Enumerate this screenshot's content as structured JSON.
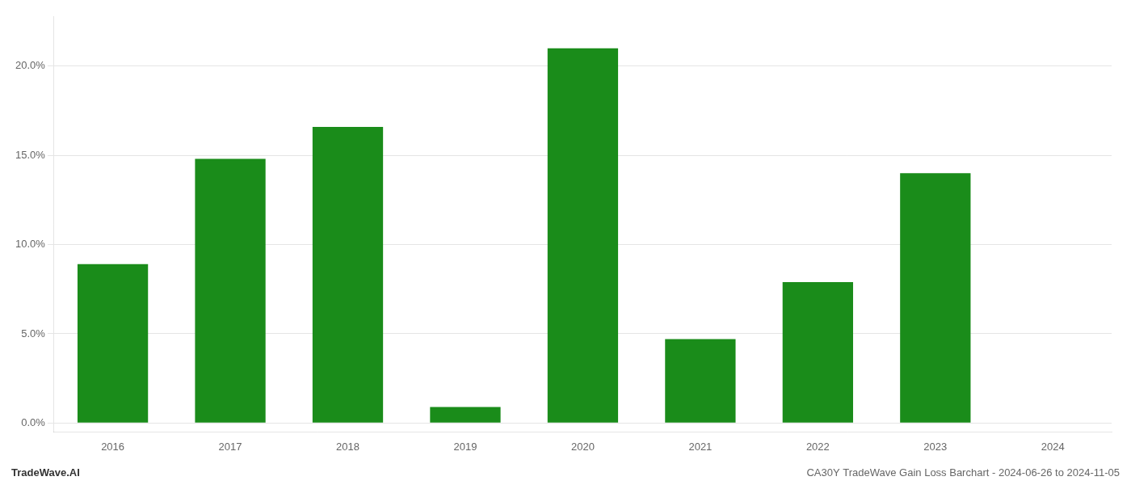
{
  "chart_data": {
    "type": "bar",
    "categories": [
      "2016",
      "2017",
      "2018",
      "2019",
      "2020",
      "2021",
      "2022",
      "2023",
      "2024"
    ],
    "values": [
      0.089,
      0.148,
      0.166,
      0.009,
      0.21,
      0.047,
      0.079,
      0.14,
      0.0
    ],
    "color": "#1a8c1a",
    "ylim": [
      -0.005,
      0.228
    ],
    "yticks": [
      {
        "value": 0.0,
        "label": "0.0%"
      },
      {
        "value": 0.05,
        "label": "5.0%"
      },
      {
        "value": 0.1,
        "label": "10.0%"
      },
      {
        "value": 0.15,
        "label": "15.0%"
      },
      {
        "value": 0.2,
        "label": "20.0%"
      }
    ],
    "grid": true,
    "annotations": [
      "TradeWave.AI",
      "CA30Y TradeWave Gain Loss Barchart - 2024-06-26 to 2024-11-05"
    ]
  }
}
